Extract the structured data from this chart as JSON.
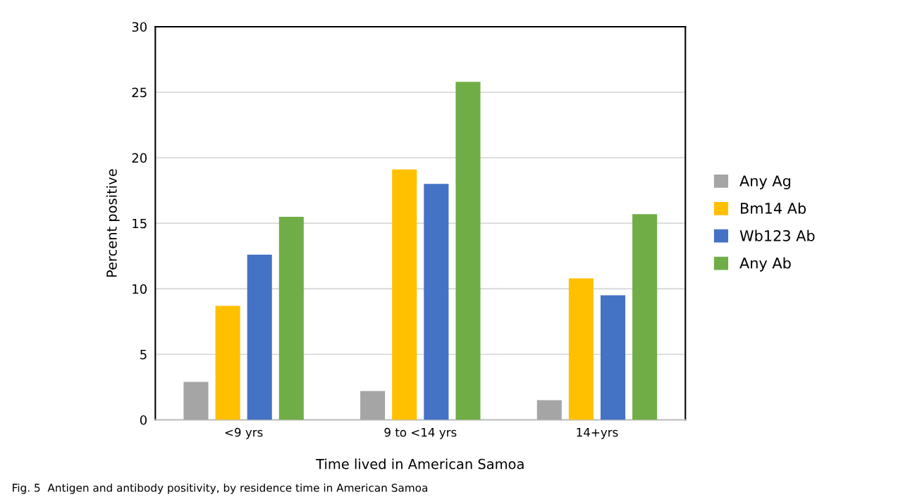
{
  "chart_data": {
    "type": "bar",
    "xlabel": "Time lived in American Samoa",
    "ylabel": "Percent positive",
    "categories": [
      "<9 yrs",
      "9 to <14 yrs",
      "14+yrs"
    ],
    "series": [
      {
        "name": "Any Ag",
        "color": "#a5a5a5",
        "values": [
          2.9,
          2.2,
          1.5
        ]
      },
      {
        "name": "Bm14 Ab",
        "color": "#ffc000",
        "values": [
          8.7,
          19.1,
          10.8
        ]
      },
      {
        "name": "Wb123 Ab",
        "color": "#4472c4",
        "values": [
          12.6,
          18.0,
          9.5
        ]
      },
      {
        "name": "Any Ab",
        "color": "#70ad47",
        "values": [
          15.5,
          25.8,
          15.7
        ]
      }
    ],
    "ylim": [
      0,
      30
    ],
    "yticks": [
      0,
      5,
      10,
      15,
      20,
      25,
      30
    ],
    "grid": "y",
    "legend": "right",
    "annotations": [
      "Fig. 5  Antigen and antibody positivity, by residence time in American Samoa"
    ]
  }
}
